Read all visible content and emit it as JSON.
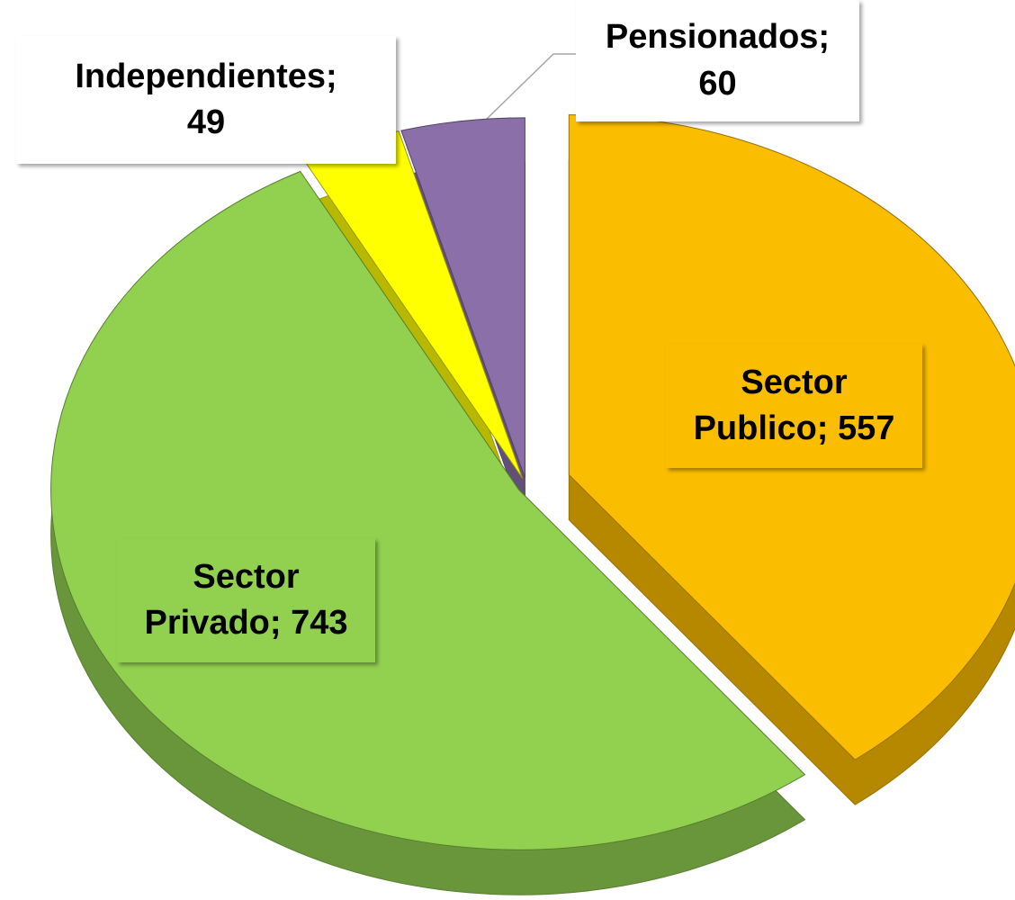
{
  "chart_data": {
    "type": "pie",
    "categories": [
      "Sector Publico",
      "Sector Privado",
      "Independientes",
      "Pensionados"
    ],
    "values": [
      557,
      743,
      49,
      60
    ],
    "value_labels": [
      "Sector Publico; 557",
      "Sector Privado; 743",
      "Independientes; 49",
      "Pensionados; 60"
    ],
    "colors": [
      "#fbbd00",
      "#92d050",
      "#ffff00",
      "#8a6fa8"
    ]
  }
}
